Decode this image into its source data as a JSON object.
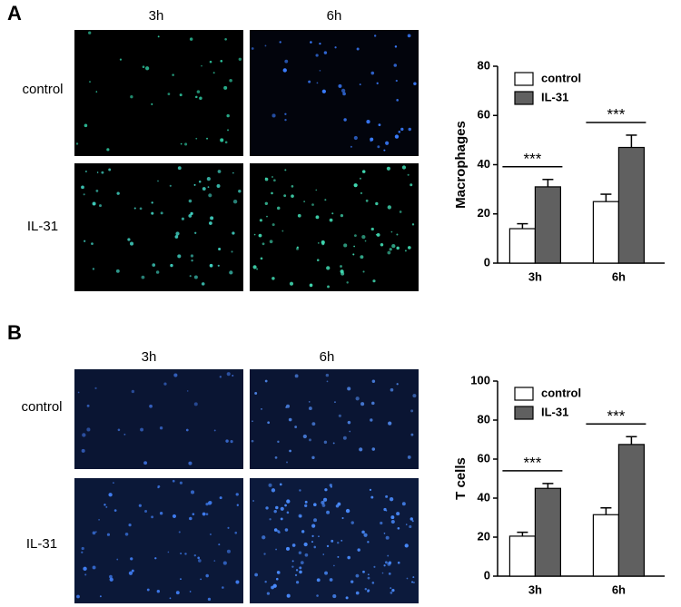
{
  "panels": [
    {
      "label": "A",
      "columns": [
        "3h",
        "6h"
      ],
      "rows": [
        "control",
        "IL-31"
      ]
    },
    {
      "label": "B",
      "columns": [
        "3h",
        "6h"
      ],
      "rows": [
        "control",
        "IL-31"
      ]
    }
  ],
  "chart_data": [
    {
      "type": "bar",
      "ylabel": "Macrophages",
      "categories": [
        "3h",
        "6h"
      ],
      "series": [
        {
          "name": "control",
          "color": "#ffffff",
          "values": [
            14,
            25
          ],
          "errors": [
            2,
            3
          ]
        },
        {
          "name": "IL-31",
          "color": "#606060",
          "values": [
            31,
            47
          ],
          "errors": [
            3,
            5
          ]
        }
      ],
      "annotations": [
        "***",
        "***"
      ],
      "ylim": [
        0,
        80
      ],
      "yticks": [
        0,
        20,
        40,
        60,
        80
      ],
      "grid": false,
      "legend": "top-left"
    },
    {
      "type": "bar",
      "ylabel": "T cells",
      "categories": [
        "3h",
        "6h"
      ],
      "series": [
        {
          "name": "control",
          "color": "#ffffff",
          "values": [
            20.5,
            31.5
          ],
          "errors": [
            2,
            3.5
          ]
        },
        {
          "name": "IL-31",
          "color": "#606060",
          "values": [
            45,
            67.5
          ],
          "errors": [
            2.5,
            4
          ]
        }
      ],
      "annotations": [
        "***",
        "***"
      ],
      "ylim": [
        0,
        100
      ],
      "yticks": [
        0,
        20,
        40,
        60,
        80,
        100
      ],
      "grid": false,
      "legend": "top-left"
    }
  ]
}
